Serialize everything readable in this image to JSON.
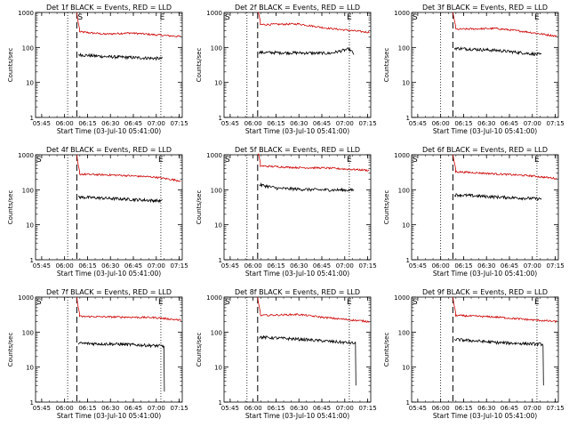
{
  "chart_data": [
    {
      "type": "line",
      "title": "Det 1f BLACK = Events, RED = LLD",
      "xlabel": "Start Time (03-Jul-10 05:41:00)",
      "ylabel": "Counts/sec",
      "ylim": [
        1,
        1000
      ],
      "y_scale": "log",
      "xlim": [
        "05:41",
        "07:17"
      ],
      "grid": false,
      "x_ticks": [
        "05:45",
        "06:00",
        "06:15",
        "06:30",
        "06:45",
        "07:00",
        "07:15"
      ],
      "y_ticks": [
        "1",
        "10",
        "100",
        "1000"
      ],
      "markers": {
        "S": "06:08",
        "E": "07:04"
      },
      "dotted_lines": [
        "06:02",
        "07:03"
      ],
      "dashed_line": "06:08",
      "series": [
        {
          "name": "RED = LLD",
          "color": "#cc0000",
          "start": "06:08",
          "end": "07:16",
          "peak": 1000,
          "level": [
            [
              0,
              280
            ],
            [
              0.25,
              240
            ],
            [
              0.5,
              260
            ],
            [
              0.75,
              230
            ],
            [
              1,
              205
            ]
          ]
        },
        {
          "name": "BLACK = Events",
          "color": "#000000",
          "start": "06:09",
          "end": "07:04",
          "level": [
            [
              0,
              62
            ],
            [
              0.3,
              55
            ],
            [
              0.6,
              52
            ],
            [
              1,
              48
            ]
          ]
        }
      ]
    },
    {
      "type": "line",
      "title": "Det 2f BLACK = Events, RED = LLD",
      "xlabel": "Start Time (03-Jul-10 05:41:00)",
      "ylabel": "Counts/sec",
      "ylim": [
        1,
        1000
      ],
      "y_scale": "log",
      "xlim": [
        "05:41",
        "07:17"
      ],
      "grid": false,
      "x_ticks": [
        "05:45",
        "06:00",
        "06:15",
        "06:30",
        "06:45",
        "07:00",
        "07:15"
      ],
      "y_ticks": [
        "1",
        "10",
        "100",
        "1000"
      ],
      "markers": {
        "S": "05:41",
        "E": "07:03"
      },
      "dotted_lines": [
        "05:56",
        "07:03"
      ],
      "dashed_line": "06:03",
      "series": [
        {
          "name": "RED = LLD",
          "color": "#cc0000",
          "start": "06:03",
          "end": "07:16",
          "peak": 1000,
          "level": [
            [
              0,
              450
            ],
            [
              0.35,
              470
            ],
            [
              0.6,
              360
            ],
            [
              1,
              270
            ]
          ]
        },
        {
          "name": "BLACK = Events",
          "color": "#000000",
          "start": "06:04",
          "end": "07:06",
          "level": [
            [
              0,
              72
            ],
            [
              0.4,
              70
            ],
            [
              0.75,
              68
            ],
            [
              0.95,
              90
            ],
            [
              1,
              65
            ]
          ]
        }
      ]
    },
    {
      "type": "line",
      "title": "Det 3f BLACK = Events, RED = LLD",
      "xlabel": "Start Time (03-Jul-10 05:41:00)",
      "ylabel": "Counts/sec",
      "ylim": [
        1,
        1000
      ],
      "y_scale": "log",
      "xlim": [
        "05:41",
        "07:17"
      ],
      "grid": false,
      "x_ticks": [
        "05:45",
        "06:00",
        "06:15",
        "06:30",
        "06:45",
        "07:00",
        "07:15"
      ],
      "y_ticks": [
        "1",
        "10",
        "100",
        "1000"
      ],
      "markers": {
        "S": "05:41",
        "E": "07:03"
      },
      "dotted_lines": [
        "06:00",
        "07:03"
      ],
      "dashed_line": "06:08",
      "series": [
        {
          "name": "RED = LLD",
          "color": "#cc0000",
          "start": "06:08",
          "end": "07:16",
          "peak": 1000,
          "level": [
            [
              0,
              330
            ],
            [
              0.4,
              350
            ],
            [
              0.7,
              280
            ],
            [
              1,
              210
            ]
          ]
        },
        {
          "name": "BLACK = Events",
          "color": "#000000",
          "start": "06:09",
          "end": "07:06",
          "level": [
            [
              0,
              95
            ],
            [
              0.5,
              82
            ],
            [
              1,
              62
            ]
          ]
        }
      ]
    },
    {
      "type": "line",
      "title": "Det 4f BLACK = Events, RED = LLD",
      "xlabel": "Start Time (03-Jul-10 05:41:00)",
      "ylabel": "Counts/sec",
      "ylim": [
        1,
        1000
      ],
      "y_scale": "log",
      "xlim": [
        "05:41",
        "07:17"
      ],
      "grid": false,
      "x_ticks": [
        "05:45",
        "06:00",
        "06:15",
        "06:30",
        "06:45",
        "07:00",
        "07:15"
      ],
      "y_ticks": [
        "1",
        "10",
        "100",
        "1000"
      ],
      "markers": {
        "S": "05:41",
        "E": "07:03"
      },
      "dotted_lines": [
        "06:02",
        "07:03"
      ],
      "dashed_line": "06:08",
      "series": [
        {
          "name": "RED = LLD",
          "color": "#cc0000",
          "start": "06:08",
          "end": "07:16",
          "peak": 1000,
          "level": [
            [
              0,
              280
            ],
            [
              0.4,
              260
            ],
            [
              0.75,
              230
            ],
            [
              1,
              180
            ]
          ]
        },
        {
          "name": "BLACK = Events",
          "color": "#000000",
          "start": "06:09",
          "end": "07:04",
          "level": [
            [
              0,
              62
            ],
            [
              0.5,
              55
            ],
            [
              1,
              48
            ]
          ]
        }
      ]
    },
    {
      "type": "line",
      "title": "Det 5f BLACK = Events, RED = LLD",
      "xlabel": "Start Time (03-Jul-10 05:41:00)",
      "ylabel": "Counts/sec",
      "ylim": [
        1,
        1000
      ],
      "y_scale": "log",
      "xlim": [
        "05:41",
        "07:17"
      ],
      "grid": false,
      "x_ticks": [
        "05:45",
        "06:00",
        "06:15",
        "06:30",
        "06:45",
        "07:00",
        "07:15"
      ],
      "y_ticks": [
        "1",
        "10",
        "100",
        "1000"
      ],
      "markers": {
        "S": "05:41",
        "E": "07:03"
      },
      "dotted_lines": [
        "05:56",
        "07:03"
      ],
      "dashed_line": "06:03",
      "series": [
        {
          "name": "RED = LLD",
          "color": "#cc0000",
          "start": "06:03",
          "end": "07:16",
          "peak": 1000,
          "level": [
            [
              0,
              480
            ],
            [
              0.35,
              430
            ],
            [
              0.6,
              420
            ],
            [
              1,
              360
            ]
          ]
        },
        {
          "name": "BLACK = Events",
          "color": "#000000",
          "start": "06:04",
          "end": "07:06",
          "level": [
            [
              0,
              140
            ],
            [
              0.2,
              110
            ],
            [
              0.6,
              100
            ],
            [
              1,
              98
            ]
          ]
        }
      ]
    },
    {
      "type": "line",
      "title": "Det 6f BLACK = Events, RED = LLD",
      "xlabel": "Start Time (03-Jul-10 05:41:00)",
      "ylabel": "Counts/sec",
      "ylim": [
        1,
        1000
      ],
      "y_scale": "log",
      "xlim": [
        "05:41",
        "07:17"
      ],
      "grid": false,
      "x_ticks": [
        "05:45",
        "06:00",
        "06:15",
        "06:30",
        "06:45",
        "07:00",
        "07:15"
      ],
      "y_ticks": [
        "1",
        "10",
        "100",
        "1000"
      ],
      "markers": {
        "S": "05:41",
        "E": "07:03"
      },
      "dotted_lines": [
        "06:00",
        "07:03"
      ],
      "dashed_line": "06:08",
      "series": [
        {
          "name": "RED = LLD",
          "color": "#cc0000",
          "start": "06:08",
          "end": "07:16",
          "peak": 1000,
          "level": [
            [
              0,
              330
            ],
            [
              0.45,
              280
            ],
            [
              0.75,
              250
            ],
            [
              1,
              210
            ]
          ]
        },
        {
          "name": "BLACK = Events",
          "color": "#000000",
          "start": "06:09",
          "end": "07:06",
          "level": [
            [
              0,
              72
            ],
            [
              0.5,
              62
            ],
            [
              1,
              55
            ]
          ]
        }
      ]
    },
    {
      "type": "line",
      "title": "Det 7f BLACK = Events, RED = LLD",
      "xlabel": "Start Time (03-Jul-10 05:41:00)",
      "ylabel": "Counts/sec",
      "ylim": [
        1,
        1000
      ],
      "y_scale": "log",
      "xlim": [
        "05:41",
        "07:17"
      ],
      "grid": false,
      "x_ticks": [
        "05:45",
        "06:00",
        "06:15",
        "06:30",
        "06:45",
        "07:00",
        "07:15"
      ],
      "y_ticks": [
        "1",
        "10",
        "100",
        "1000"
      ],
      "markers": {
        "S": "05:41",
        "E": "07:03"
      },
      "dotted_lines": [
        "06:02",
        "07:03"
      ],
      "dashed_line": "06:08",
      "series": [
        {
          "name": "RED = LLD",
          "color": "#cc0000",
          "start": "06:08",
          "end": "07:16",
          "peak": 1000,
          "level": [
            [
              0,
              280
            ],
            [
              0.4,
              270
            ],
            [
              0.75,
              260
            ],
            [
              1,
              220
            ]
          ]
        },
        {
          "name": "BLACK = Events",
          "color": "#000000",
          "start": "06:09",
          "end": "07:05",
          "drop_to": 2,
          "level": [
            [
              0,
              48
            ],
            [
              0.5,
              45
            ],
            [
              1,
              40
            ]
          ]
        }
      ]
    },
    {
      "type": "line",
      "title": "Det 8f BLACK = Events, RED = LLD",
      "xlabel": "Start Time (03-Jul-10 05:41:00)",
      "ylabel": "Counts/sec",
      "ylim": [
        1,
        1000
      ],
      "y_scale": "log",
      "xlim": [
        "05:41",
        "07:17"
      ],
      "grid": false,
      "x_ticks": [
        "05:45",
        "06:00",
        "06:15",
        "06:30",
        "06:45",
        "07:00",
        "07:15"
      ],
      "y_ticks": [
        "1",
        "10",
        "100",
        "1000"
      ],
      "markers": {
        "S": "05:41",
        "E": "07:03"
      },
      "dotted_lines": [
        "05:56",
        "07:03"
      ],
      "dashed_line": "06:03",
      "series": [
        {
          "name": "RED = LLD",
          "color": "#cc0000",
          "start": "06:03",
          "end": "07:16",
          "peak": 1000,
          "level": [
            [
              0,
              300
            ],
            [
              0.35,
              320
            ],
            [
              0.6,
              260
            ],
            [
              1,
              200
            ]
          ]
        },
        {
          "name": "BLACK = Events",
          "color": "#000000",
          "start": "06:04",
          "end": "07:07",
          "drop_to": 3,
          "level": [
            [
              0,
              72
            ],
            [
              0.45,
              62
            ],
            [
              1,
              48
            ]
          ]
        }
      ]
    },
    {
      "type": "line",
      "title": "Det 9f BLACK = Events, RED = LLD",
      "xlabel": "Start Time (03-Jul-10 05:41:00)",
      "ylabel": "Counts/sec",
      "ylim": [
        1,
        1000
      ],
      "y_scale": "log",
      "xlim": [
        "05:41",
        "07:17"
      ],
      "grid": false,
      "x_ticks": [
        "05:45",
        "06:00",
        "06:15",
        "06:30",
        "06:45",
        "07:00",
        "07:15"
      ],
      "y_ticks": [
        "1",
        "10",
        "100",
        "1000"
      ],
      "markers": {
        "S": "05:41",
        "E": "07:03"
      },
      "dotted_lines": [
        "06:00",
        "07:03"
      ],
      "dashed_line": "06:08",
      "series": [
        {
          "name": "RED = LLD",
          "color": "#cc0000",
          "start": "06:08",
          "end": "07:16",
          "peak": 1000,
          "level": [
            [
              0,
              300
            ],
            [
              0.4,
              270
            ],
            [
              0.7,
              230
            ],
            [
              1,
              200
            ]
          ]
        },
        {
          "name": "BLACK = Events",
          "color": "#000000",
          "start": "06:09",
          "end": "07:07",
          "drop_to": 3,
          "level": [
            [
              0,
              62
            ],
            [
              0.5,
              50
            ],
            [
              1,
              45
            ]
          ]
        }
      ]
    }
  ]
}
